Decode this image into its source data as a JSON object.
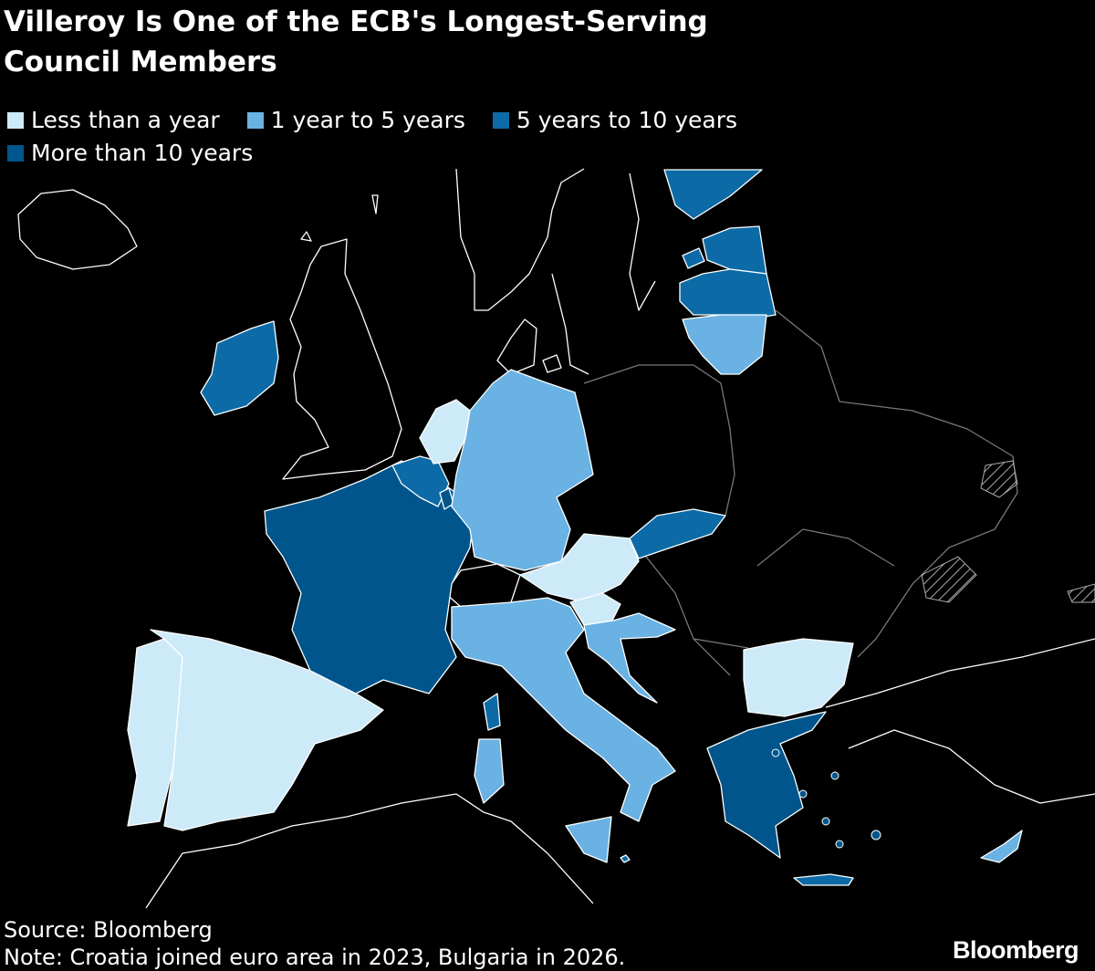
{
  "title_line1": "Villeroy Is One of the ECB's Longest-Serving",
  "title_line2": "Council Members",
  "colors": {
    "less_than_year": "#cdeaf9",
    "one_to_five": "#69b2e3",
    "five_to_ten": "#0c6ba6",
    "more_than_ten": "#00568c",
    "non_member": "#000000",
    "border": "#ffffff"
  },
  "legend": [
    {
      "label": "Less than a year",
      "color": "#cdeaf9"
    },
    {
      "label": "1 year to 5 years",
      "color": "#69b2e3"
    },
    {
      "label": "5 years to 10 years",
      "color": "#0c6ba6"
    },
    {
      "label": "More than 10 years",
      "color": "#00568c"
    }
  ],
  "countries": {
    "Spain": "Less than a year",
    "Netherlands": "Less than a year",
    "Austria": "Less than a year",
    "Slovenia": "Less than a year",
    "Bulgaria": "Less than a year",
    "Germany": "1 year to 5 years",
    "Italy": "1 year to 5 years",
    "Croatia": "1 year to 5 years",
    "Lithuania": "1 year to 5 years",
    "Cyprus": "1 year to 5 years",
    "Ireland": "5 years to 10 years",
    "Belgium": "5 years to 10 years",
    "Slovakia": "5 years to 10 years",
    "Latvia": "5 years to 10 years",
    "Estonia": "5 years to 10 years",
    "Finland": "5 years to 10 years",
    "Malta": "5 years to 10 years",
    "France": "More than 10 years",
    "Greece": "More than 10 years",
    "Luxembourg": "More than 10 years",
    "Portugal": "Less than a year"
  },
  "footer": {
    "source": "Source: Bloomberg",
    "note": "Note: Croatia joined euro area in 2023, Bulgaria in 2026."
  },
  "brand": "Bloomberg"
}
